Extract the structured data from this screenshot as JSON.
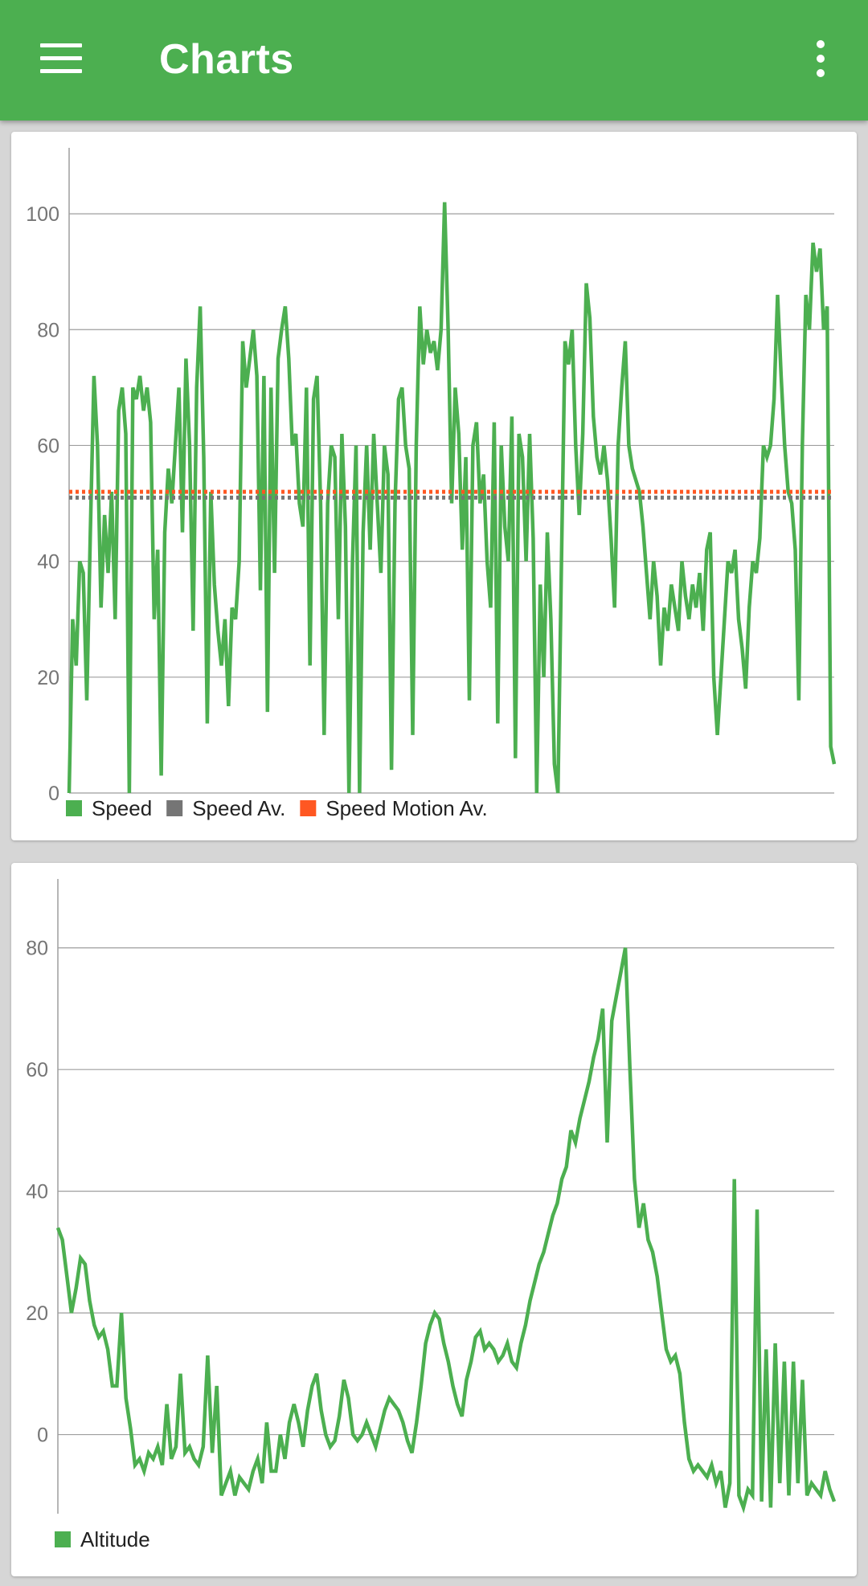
{
  "app_bar": {
    "title": "Charts",
    "menu_icon": "hamburger-menu-icon",
    "overflow_icon": "more-vert-icon",
    "color": "#4caf50"
  },
  "chart_data": [
    {
      "type": "line",
      "title": "",
      "xlabel": "",
      "ylabel": "",
      "ylim": [
        0,
        110
      ],
      "yticks": [
        0,
        20,
        40,
        60,
        80,
        100
      ],
      "grid": true,
      "legend": "bottom-left",
      "series": [
        {
          "name": "Speed",
          "color": "#4caf50",
          "values": [
            0,
            30,
            22,
            40,
            38,
            16,
            45,
            72,
            60,
            32,
            48,
            38,
            52,
            30,
            66,
            70,
            62,
            0,
            70,
            68,
            72,
            66,
            70,
            64,
            30,
            42,
            3,
            45,
            56,
            50,
            60,
            70,
            45,
            75,
            60,
            28,
            70,
            84,
            58,
            12,
            52,
            36,
            28,
            22,
            30,
            15,
            32,
            30,
            40,
            78,
            70,
            75,
            80,
            72,
            35,
            72,
            14,
            70,
            38,
            75,
            80,
            84,
            75,
            60,
            62,
            50,
            46,
            70,
            22,
            68,
            72,
            50,
            10,
            50,
            60,
            58,
            30,
            62,
            46,
            0,
            40,
            60,
            0,
            45,
            60,
            42,
            62,
            50,
            38,
            60,
            55,
            4,
            50,
            68,
            70,
            60,
            56,
            10,
            60,
            84,
            74,
            80,
            76,
            78,
            73,
            80,
            102,
            80,
            50,
            70,
            62,
            42,
            58,
            16,
            60,
            64,
            50,
            55,
            40,
            32,
            64,
            12,
            60,
            46,
            40,
            65,
            6,
            62,
            58,
            40,
            62,
            44,
            0,
            36,
            20,
            45,
            30,
            5,
            0,
            40,
            78,
            74,
            80,
            60,
            48,
            62,
            88,
            82,
            65,
            58,
            55,
            60,
            54,
            44,
            32,
            60,
            70,
            78,
            60,
            56,
            54,
            52,
            46,
            38,
            30,
            40,
            34,
            22,
            32,
            28,
            36,
            32,
            28,
            40,
            34,
            30,
            36,
            32,
            38,
            28,
            42,
            45,
            20,
            10,
            20,
            30,
            40,
            38,
            42,
            30,
            25,
            18,
            32,
            40,
            38,
            44,
            60,
            58,
            60,
            68,
            86,
            72,
            60,
            52,
            50,
            42,
            16,
            60,
            86,
            80,
            95,
            90,
            94,
            80,
            84,
            8,
            5
          ]
        },
        {
          "name": "Speed Av.",
          "color": "#757575",
          "style": "dotted",
          "values": [
            51
          ]
        },
        {
          "name": "Speed Motion Av.",
          "color": "#ff5722",
          "style": "dotted",
          "values": [
            52
          ]
        }
      ]
    },
    {
      "type": "line",
      "title": "",
      "xlabel": "",
      "ylabel": "",
      "ylim": [
        -13,
        90
      ],
      "yticks": [
        0,
        20,
        40,
        60,
        80
      ],
      "grid": true,
      "legend": "bottom-left",
      "series": [
        {
          "name": "Altitude",
          "color": "#4caf50",
          "values": [
            34,
            32,
            26,
            20,
            24,
            29,
            28,
            22,
            18,
            16,
            17,
            14,
            8,
            8,
            20,
            6,
            1,
            -5,
            -4,
            -6,
            -3,
            -4,
            -2,
            -5,
            5,
            -4,
            -2,
            10,
            -3,
            -2,
            -4,
            -5,
            -2,
            13,
            -3,
            8,
            -10,
            -8,
            -6,
            -10,
            -7,
            -8,
            -9,
            -6,
            -4,
            -8,
            2,
            -6,
            -6,
            0,
            -4,
            2,
            5,
            2,
            -2,
            4,
            8,
            10,
            4,
            0,
            -2,
            -1,
            3,
            9,
            6,
            0,
            -1,
            0,
            2,
            0,
            -2,
            1,
            4,
            6,
            5,
            4,
            2,
            -1,
            -3,
            2,
            8,
            15,
            18,
            20,
            19,
            15,
            12,
            8,
            5,
            3,
            9,
            12,
            16,
            17,
            14,
            15,
            14,
            12,
            13,
            15,
            12,
            11,
            15,
            18,
            22,
            25,
            28,
            30,
            33,
            36,
            38,
            42,
            44,
            50,
            48,
            52,
            55,
            58,
            62,
            65,
            70,
            48,
            68,
            72,
            76,
            80,
            60,
            42,
            34,
            38,
            32,
            30,
            26,
            20,
            14,
            12,
            13,
            10,
            2,
            -4,
            -6,
            -5,
            -6,
            -7,
            -5,
            -8,
            -6,
            -12,
            -8,
            42,
            -10,
            -12,
            -9,
            -10,
            37,
            -11,
            14,
            -12,
            15,
            -8,
            12,
            -10,
            12,
            -8,
            9,
            -10,
            -8,
            -9,
            -10,
            -6,
            -9,
            -11
          ]
        }
      ]
    }
  ]
}
